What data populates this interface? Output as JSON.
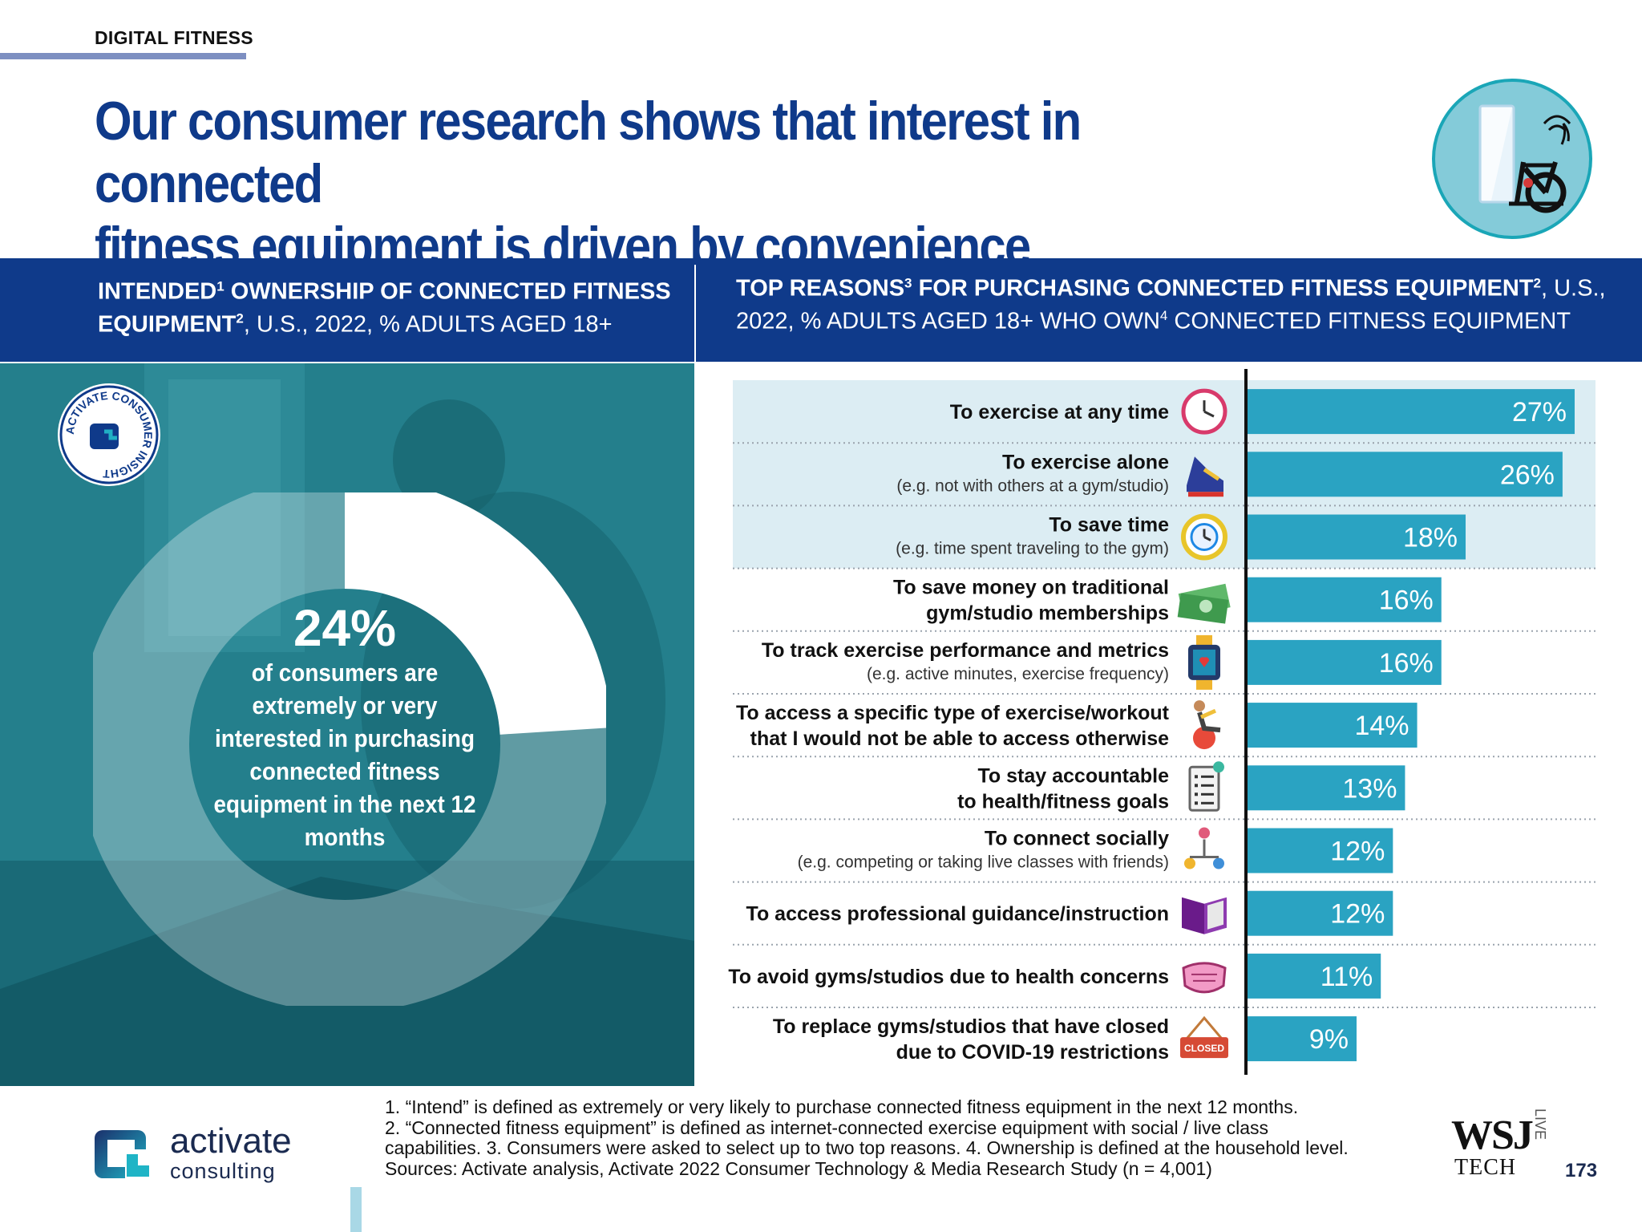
{
  "header": {
    "section_tag": "DIGITAL FITNESS",
    "headline_line1": "Our consumer research shows that interest in connected",
    "headline_line2": "fitness equipment is driven by convenience"
  },
  "left_panel": {
    "title_bold_1": "INTENDED",
    "sup1": "1",
    "title_bold_2": " OWNERSHIP OF CONNECTED FITNESS EQUIPMENT",
    "sup2": "2",
    "title_rest": ", U.S., 2022, % ADULTS AGED 18+",
    "badge_text": "ACTIVATE CONSUMER INSIGHT",
    "donut_value_label": "24%",
    "donut_value": 24,
    "donut_caption": "of consumers are extremely or very interested in purchasing connected fitness equipment in the next 12 months"
  },
  "right_panel": {
    "title_bold_1": "TOP REASONS",
    "sup3": "3",
    "title_bold_2": " FOR PURCHASING CONNECTED FITNESS EQUIPMENT",
    "sup2": "2",
    "title_rest_1": ", U.S., 2022, % ADULTS AGED 18+ WHO OWN",
    "sup4": "4",
    "title_rest_2": " CONNECTED FITNESS EQUIPMENT"
  },
  "chart_data": {
    "type": "bar",
    "orientation": "horizontal",
    "categories": [
      "To exercise at any time",
      "To exercise alone",
      "To save time",
      "To save money on traditional gym/studio memberships",
      "To track exercise performance and metrics",
      "To access a specific type of exercise/workout that I would not be able to access otherwise",
      "To stay accountable to health/fitness goals",
      "To connect socially",
      "To access professional guidance/instruction",
      "To avoid gyms/studios due to health concerns",
      "To replace gyms/studios that have closed due to COVID-19 restrictions"
    ],
    "label_lines": [
      [
        "To exercise at any time"
      ],
      [
        "To exercise alone"
      ],
      [
        "To save time"
      ],
      [
        "To save money on traditional",
        "gym/studio memberships"
      ],
      [
        "To track exercise performance and metrics"
      ],
      [
        "To access a specific type of exercise/workout",
        "that I would not be able to access otherwise"
      ],
      [
        "To stay accountable",
        "to health/fitness goals"
      ],
      [
        "To connect socially"
      ],
      [
        "To access professional guidance/instruction"
      ],
      [
        "To avoid gyms/studios due to health concerns"
      ],
      [
        "To replace gyms/studios that have closed",
        "due to COVID-19 restrictions"
      ]
    ],
    "sublabels": [
      "",
      "(e.g. not with others at a gym/studio)",
      "(e.g. time spent traveling to the gym)",
      "",
      "(e.g. active minutes, exercise frequency)",
      "",
      "",
      "(e.g. competing or taking live classes with friends)",
      "",
      "",
      ""
    ],
    "values": [
      27,
      26,
      18,
      16,
      16,
      14,
      13,
      12,
      12,
      11,
      9
    ],
    "value_labels": [
      "27%",
      "26%",
      "18%",
      "16%",
      "16%",
      "14%",
      "13%",
      "12%",
      "12%",
      "11%",
      "9%"
    ],
    "highlighted": [
      true,
      true,
      true,
      false,
      false,
      false,
      false,
      false,
      false,
      false,
      false
    ],
    "icons": [
      "clock-icon",
      "shoe-icon",
      "stopwatch-icon",
      "money-icon",
      "smartwatch-icon",
      "exercise-ball-icon",
      "checklist-icon",
      "social-network-icon",
      "book-icon",
      "face-mask-icon",
      "closed-sign-icon"
    ],
    "closed_sign_text": "CLOSED",
    "bar_color": "#2aa3c2",
    "highlight_color": "#dcedf3",
    "xlim": [
      0,
      27
    ]
  },
  "footer": {
    "logo_name": "activate",
    "logo_sub": "consulting",
    "footnote_1": "1. “Intend” is defined as extremely or very likely to purchase connected fitness equipment in the next 12 months.",
    "footnote_2": "2. “Connected fitness equipment” is defined as internet-connected exercise equipment with social / live class",
    "footnote_3": "capabilities.  3. Consumers were asked to select up to two top reasons.  4. Ownership is defined at the household level.",
    "footnote_4": "Sources: Activate analysis, Activate 2022 Consumer Technology & Media Research Study (n = 4,001)",
    "wsj": "WSJ",
    "wsj_tech": "TECH",
    "wsj_live": "LIVE",
    "page_number": "173"
  },
  "colors": {
    "navy": "#0f3a8a",
    "teal_panel": "#1d7d8a",
    "bar": "#2aa3c2"
  }
}
